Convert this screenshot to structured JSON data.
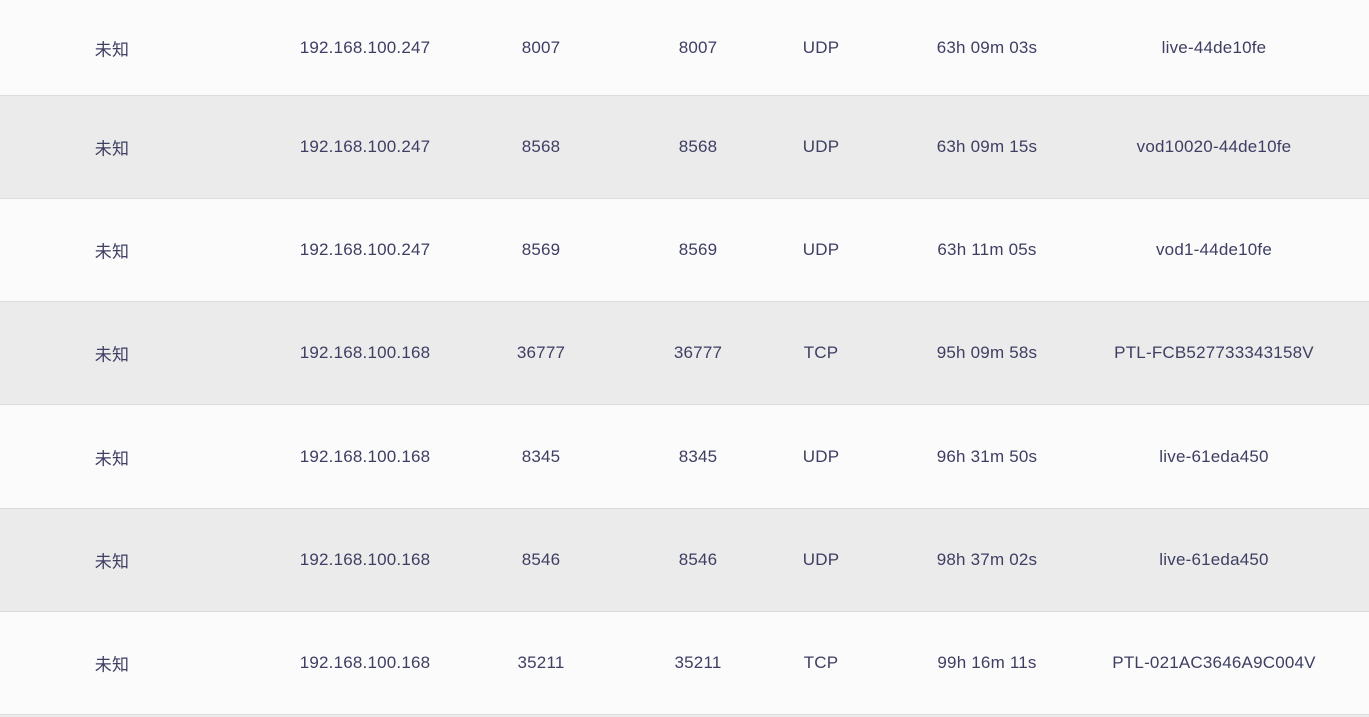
{
  "colors": {
    "text": "#3e3e63",
    "row_light": "#fbfbfb",
    "row_dark": "#ebebeb",
    "border": "#dcdcdc"
  },
  "table": {
    "rows": [
      {
        "device": "未知",
        "ip": "192.168.100.247",
        "external_port": "8007",
        "internal_port": "8007",
        "protocol": "UDP",
        "duration": "63h 09m 03s",
        "description": "live-44de10fe"
      },
      {
        "device": "未知",
        "ip": "192.168.100.247",
        "external_port": "8568",
        "internal_port": "8568",
        "protocol": "UDP",
        "duration": "63h 09m 15s",
        "description": "vod10020-44de10fe"
      },
      {
        "device": "未知",
        "ip": "192.168.100.247",
        "external_port": "8569",
        "internal_port": "8569",
        "protocol": "UDP",
        "duration": "63h 11m 05s",
        "description": "vod1-44de10fe"
      },
      {
        "device": "未知",
        "ip": "192.168.100.168",
        "external_port": "36777",
        "internal_port": "36777",
        "protocol": "TCP",
        "duration": "95h 09m 58s",
        "description": "PTL-FCB527733343158V"
      },
      {
        "device": "未知",
        "ip": "192.168.100.168",
        "external_port": "8345",
        "internal_port": "8345",
        "protocol": "UDP",
        "duration": "96h 31m 50s",
        "description": "live-61eda450"
      },
      {
        "device": "未知",
        "ip": "192.168.100.168",
        "external_port": "8546",
        "internal_port": "8546",
        "protocol": "UDP",
        "duration": "98h 37m 02s",
        "description": "live-61eda450"
      },
      {
        "device": "未知",
        "ip": "192.168.100.168",
        "external_port": "35211",
        "internal_port": "35211",
        "protocol": "TCP",
        "duration": "99h 16m 11s",
        "description": "PTL-021AC3646A9C004V"
      }
    ]
  }
}
